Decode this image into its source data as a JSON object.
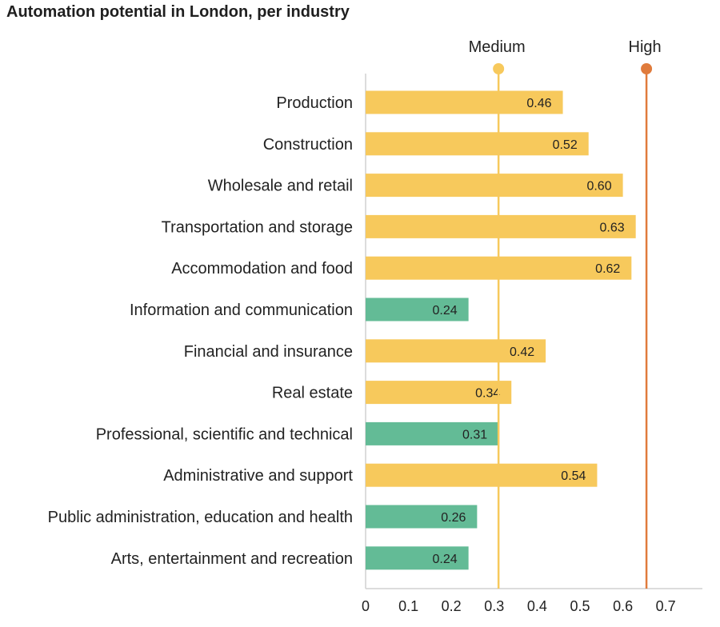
{
  "chart_data": {
    "type": "bar",
    "orientation": "horizontal",
    "title": "Automation potential in London, per industry",
    "categories": [
      "Production",
      "Construction",
      "Wholesale and retail",
      "Transportation and storage",
      "Accommodation and food",
      "Information and communication",
      "Financial and insurance",
      "Real estate",
      "Professional, scientific and technical",
      "Administrative and support",
      "Public administration, education and health",
      "Arts, entertainment and recreation"
    ],
    "values": [
      0.46,
      0.52,
      0.6,
      0.63,
      0.62,
      0.24,
      0.42,
      0.34,
      0.31,
      0.54,
      0.26,
      0.24
    ],
    "value_labels": [
      "0.46",
      "0.52",
      "0.60",
      "0.63",
      "0.62",
      "0.24",
      "0.42",
      "0.34",
      "0.31",
      "0.54",
      "0.26",
      "0.24"
    ],
    "bar_groups": [
      "medium",
      "medium",
      "medium",
      "medium",
      "medium",
      "low",
      "medium",
      "medium",
      "low",
      "medium",
      "low",
      "low"
    ],
    "colors": {
      "medium": "#f7c95c",
      "low": "#63bb96",
      "medium_line": "#f7c95c",
      "high_line": "#e07b3c",
      "axis": "#d0d0d0"
    },
    "reference_lines": [
      {
        "label": "Medium",
        "value": 0.31,
        "color": "#f7c95c"
      },
      {
        "label": "High",
        "value": 0.655,
        "color": "#e07b3c"
      }
    ],
    "xticks": [
      "0",
      "0.1",
      "0.2",
      "0.3",
      "0.4",
      "0.5",
      "0.6",
      "0.7"
    ],
    "xlim": [
      0,
      0.78
    ],
    "grid": false,
    "legend": "none"
  }
}
